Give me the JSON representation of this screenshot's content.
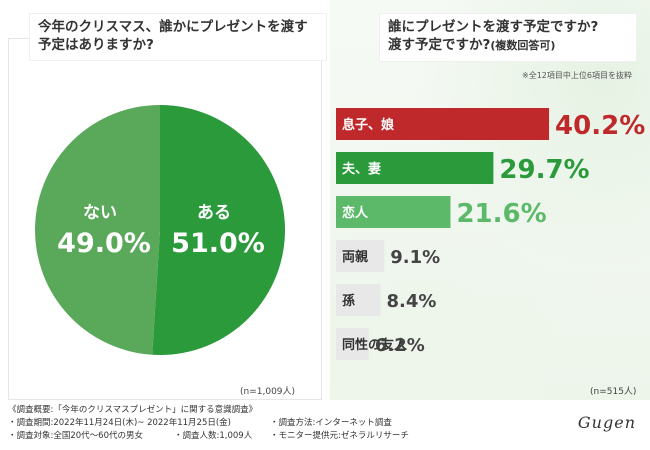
{
  "colors": {
    "red": "#c0292c",
    "dark_green": "#2a9a3b",
    "mid_green": "#5cb96a",
    "gray": "#e8e8e8",
    "pie_green_dark": "#2a9a3b",
    "pie_green_light": "#5aa95b"
  },
  "chart_data": [
    {
      "type": "pie",
      "title": "今年のクリスマス、誰かにプレゼントを渡す予定はありますか?",
      "slices": [
        {
          "label": "ある",
          "value": 51.0,
          "display": "51.0%"
        },
        {
          "label": "ない",
          "value": 49.0,
          "display": "49.0%"
        }
      ],
      "n_label": "(n=1,009人)"
    },
    {
      "type": "bar",
      "title": "誰にプレゼントを渡す予定ですか?",
      "subtitle": "(複数回答可)",
      "note": "※全12項目中上位6項目を抜粋",
      "categories": [
        "息子、娘",
        "夫、妻",
        "恋人",
        "両親",
        "孫",
        "同性の友人"
      ],
      "values": [
        40.2,
        29.7,
        21.6,
        9.1,
        8.4,
        6.2
      ],
      "display": [
        "40.2%",
        "29.7%",
        "21.6%",
        "9.1%",
        "8.4%",
        "6.2%"
      ],
      "n_label": "(n=515人)"
    }
  ],
  "footer": {
    "survey_title": "《調査概要:「今年のクリスマスプレゼント」に関する意識調査》",
    "period": "・調査期間:2022年11月24日(木)~ 2022年11月25日(金)",
    "method": "・調査方法:インターネット調査",
    "target": "・調査対象:全国20代～60代の男女",
    "count": "・調査人数:1,009人",
    "provider": "・モニター提供元:ゼネラルリサーチ"
  },
  "logo_text": "Gugen"
}
